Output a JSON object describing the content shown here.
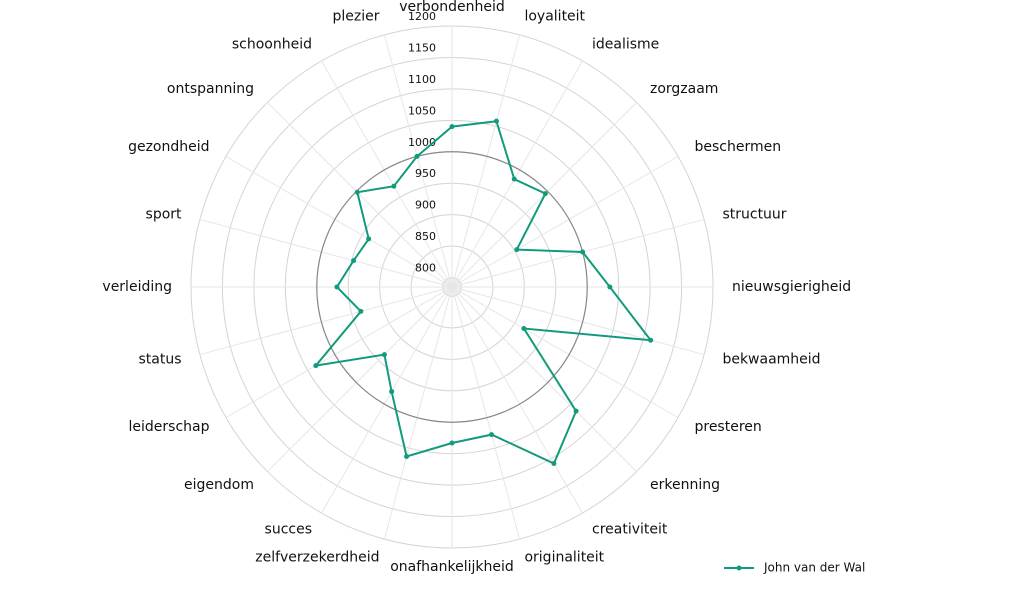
{
  "chart_data": {
    "type": "radar",
    "categories": [
      "verbondenheid",
      "loyaliteit",
      "idealisme",
      "zorgzaam",
      "beschermen",
      "structuur",
      "nieuwsgierigheid",
      "bekwaamheid",
      "presteren",
      "erkenning",
      "creativiteit",
      "originaliteit",
      "onafhankelijkheid",
      "zelfverzekerdheid",
      "succes",
      "eigendom",
      "leiderschap",
      "status",
      "verleiding",
      "sport",
      "gezondheid",
      "ontspanning",
      "schoonheid",
      "plezier"
    ],
    "series": [
      {
        "name": "John van der Wal",
        "color": "#119a7c",
        "values": [
          1040,
          1058,
          983,
          995,
          904,
          1000,
          1036,
          1112,
          917,
          1064,
          1109,
          1028,
          1033,
          1064,
          977,
          937,
          1035,
          935,
          968,
          947,
          938,
          998,
          970,
          1000
        ]
      }
    ],
    "ylim": [
      785,
      1200
    ],
    "yticks": [
      800,
      850,
      900,
      950,
      1000,
      1050,
      1100,
      1150,
      1200
    ],
    "reference_line": 1000,
    "grid": true,
    "legend": "bottom-right"
  }
}
